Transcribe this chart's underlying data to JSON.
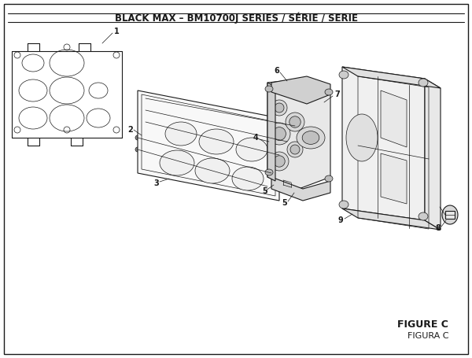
{
  "title": "BLACK MAX – BM10700J SERIES / SÉRIE / SERIE",
  "figure_label": "FIGURE C",
  "figura_label": "FIGURA C",
  "bg_color": "#ffffff",
  "line_color": "#1a1a1a",
  "title_fontsize": 8.5,
  "fig_label_fontsize": 9,
  "part_label_fontsize": 7
}
